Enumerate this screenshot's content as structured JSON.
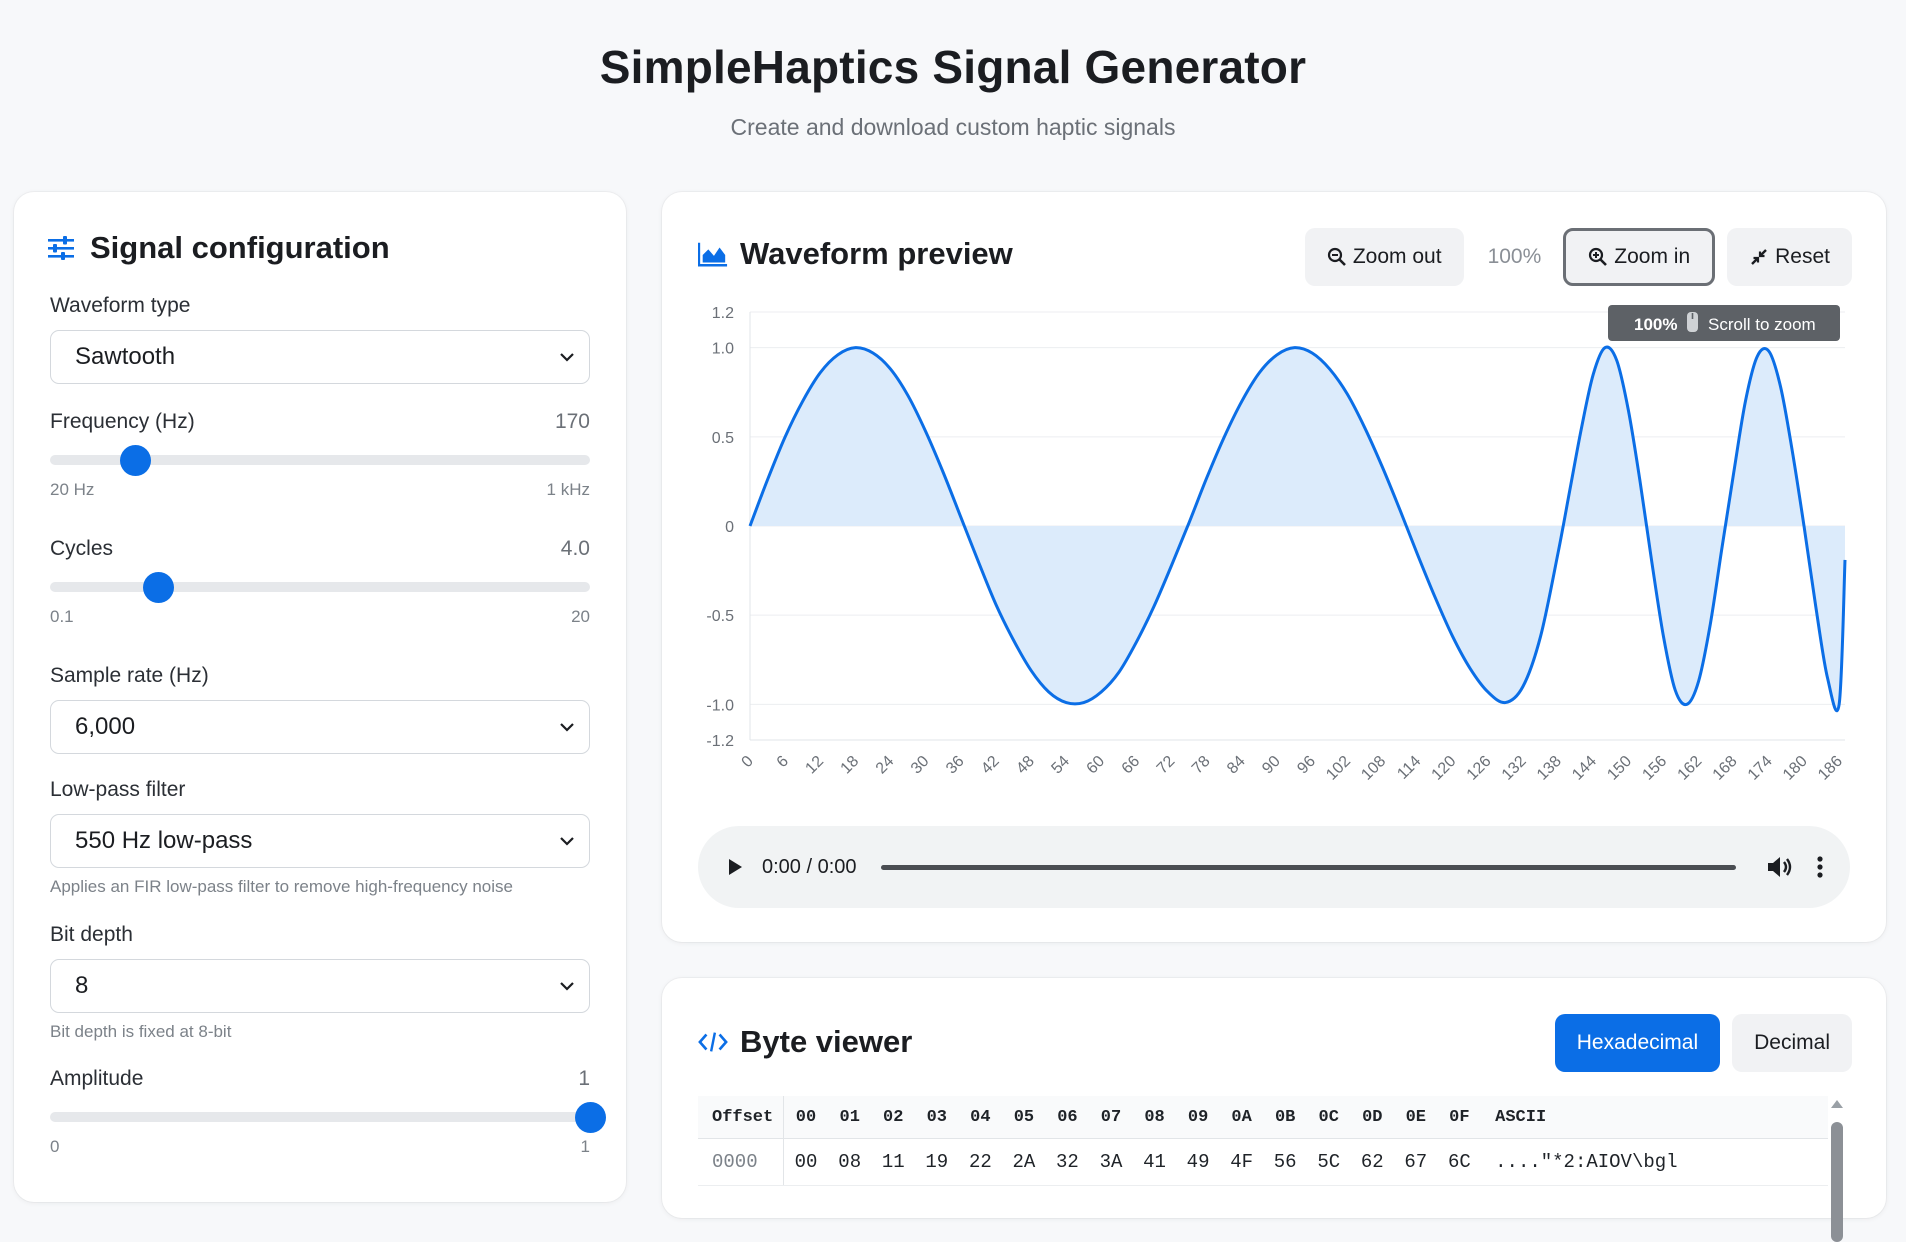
{
  "header": {
    "title": "SimpleHaptics Signal Generator",
    "subtitle": "Create and download custom haptic signals"
  },
  "config": {
    "title": "Signal configuration",
    "waveform": {
      "label": "Waveform type",
      "value": "Sawtooth"
    },
    "frequency": {
      "label": "Frequency (Hz)",
      "value": "170",
      "min_label": "20 Hz",
      "max_label": "1 kHz",
      "fraction": 0.157
    },
    "cycles": {
      "label": "Cycles",
      "value": "4.0",
      "min_label": "0.1",
      "max_label": "20",
      "fraction": 0.2
    },
    "sample_rate": {
      "label": "Sample rate (Hz)",
      "value": "6,000"
    },
    "lowpass": {
      "label": "Low-pass filter",
      "value": "550 Hz low-pass",
      "hint": "Applies an FIR low-pass filter to remove high-frequency noise"
    },
    "bit_depth": {
      "label": "Bit depth",
      "value": "8",
      "hint": "Bit depth is fixed at 8-bit"
    },
    "amplitude": {
      "label": "Amplitude",
      "value": "1",
      "min_label": "0",
      "max_label": "1",
      "fraction": 1.0
    }
  },
  "preview": {
    "title": "Waveform preview",
    "zoom_out_label": "Zoom out",
    "zoom_level": "100%",
    "zoom_in_label": "Zoom in",
    "reset_label": "Reset",
    "tooltip_zoom": "100%",
    "tooltip_hint": "Scroll to zoom",
    "audio_time": "0:00 / 0:00"
  },
  "chart_data": {
    "type": "area",
    "title": "",
    "xlabel": "",
    "ylabel": "",
    "xlim": [
      0,
      187
    ],
    "ylim": [
      -1.2,
      1.2
    ],
    "y_ticks": [
      "1.2",
      "1.0",
      "0.5",
      "0",
      "-0.5",
      "-1.0",
      "-1.2"
    ],
    "x_ticks": [
      0,
      6,
      12,
      18,
      24,
      30,
      36,
      42,
      48,
      54,
      60,
      66,
      72,
      78,
      84,
      90,
      96,
      102,
      108,
      114,
      120,
      126,
      132,
      138,
      144,
      150,
      156,
      162,
      168,
      174,
      180,
      186
    ],
    "grid": true,
    "series": [
      {
        "color": "#0b6ee6",
        "fill": "#dcebfb",
        "x": [
          0,
          3,
          6,
          9,
          12,
          15,
          18,
          21,
          24,
          27,
          30,
          33,
          36,
          39,
          42,
          45,
          48,
          51,
          54,
          57,
          60,
          63,
          66,
          69,
          72,
          75,
          78,
          81,
          84,
          87,
          90,
          93,
          96,
          99,
          102,
          105,
          108,
          111,
          114,
          117,
          120,
          123,
          126,
          129,
          132,
          135,
          138,
          140,
          142,
          144,
          146,
          148,
          150,
          152,
          154,
          156,
          158,
          160,
          162,
          164,
          166,
          168,
          170,
          172,
          174,
          176,
          178,
          180,
          182,
          184,
          186,
          187
        ],
        "y": [
          0,
          0.26,
          0.5,
          0.7,
          0.86,
          0.96,
          1.0,
          0.97,
          0.88,
          0.73,
          0.53,
          0.3,
          0.05,
          -0.2,
          -0.44,
          -0.64,
          -0.81,
          -0.93,
          -0.99,
          -0.99,
          -0.93,
          -0.82,
          -0.65,
          -0.45,
          -0.22,
          0.02,
          0.27,
          0.5,
          0.7,
          0.86,
          0.96,
          1.0,
          0.97,
          0.88,
          0.74,
          0.55,
          0.33,
          0.09,
          -0.16,
          -0.4,
          -0.62,
          -0.8,
          -0.93,
          -0.99,
          -0.9,
          -0.62,
          -0.15,
          0.2,
          0.55,
          0.85,
          1.0,
          0.93,
          0.65,
          0.25,
          -0.2,
          -0.62,
          -0.92,
          -1.0,
          -0.87,
          -0.55,
          -0.12,
          0.3,
          0.7,
          0.95,
          0.98,
          0.78,
          0.42,
          0.0,
          -0.45,
          -0.85,
          -1.0,
          -0.19
        ]
      }
    ]
  },
  "bytes": {
    "title": "Byte viewer",
    "hex_label": "Hexadecimal",
    "dec_label": "Decimal",
    "columns": [
      "Offset",
      "00",
      "01",
      "02",
      "03",
      "04",
      "05",
      "06",
      "07",
      "08",
      "09",
      "0A",
      "0B",
      "0C",
      "0D",
      "0E",
      "0F",
      "ASCII"
    ],
    "rows": [
      {
        "offset": "0000",
        "cells": [
          "00",
          "08",
          "11",
          "19",
          "22",
          "2A",
          "32",
          "3A",
          "41",
          "49",
          "4F",
          "56",
          "5C",
          "62",
          "67",
          "6C"
        ],
        "ascii": "....\"*2:AIOV\\bgl"
      }
    ]
  }
}
